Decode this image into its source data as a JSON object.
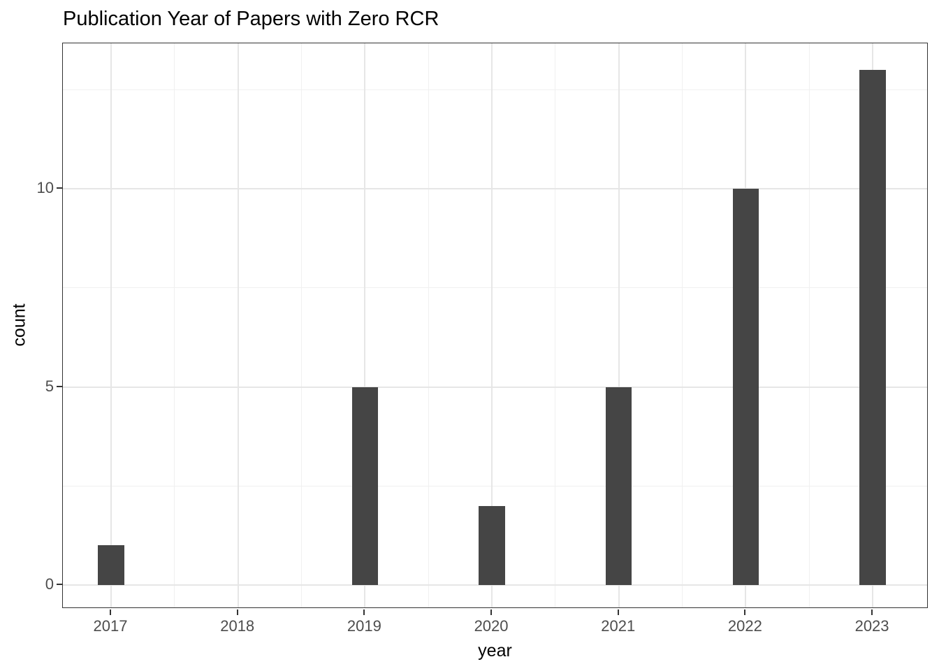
{
  "chart_data": {
    "type": "bar",
    "title": "Publication Year of Papers with Zero RCR",
    "xlabel": "year",
    "ylabel": "count",
    "categories": [
      2017,
      2018,
      2019,
      2020,
      2021,
      2022,
      2023
    ],
    "values": [
      1,
      0,
      5,
      2,
      5,
      10,
      13
    ],
    "xticks": [
      2017,
      2018,
      2019,
      2020,
      2021,
      2022,
      2023
    ],
    "xticks_minor": [
      2017.5,
      2018.5,
      2019.5,
      2020.5,
      2021.5,
      2022.5
    ],
    "yticks": [
      0,
      5,
      10
    ],
    "yticks_minor": [
      2.5,
      7.5,
      12.5
    ],
    "xlim": [
      2016.62,
      2023.44
    ],
    "ylim": [
      -0.6,
      13.67
    ],
    "bar_width": 0.206,
    "grid": "major-and-minor",
    "legend": "none",
    "colors": {
      "bar_fill": "#454545",
      "grid_major": "#e6e6e6",
      "grid_minor": "#f0f0f0",
      "panel_border": "#333333",
      "axis_tick": "#333333",
      "tick_label": "#4d4d4d",
      "title_text": "#000000",
      "background": "#ffffff"
    }
  }
}
